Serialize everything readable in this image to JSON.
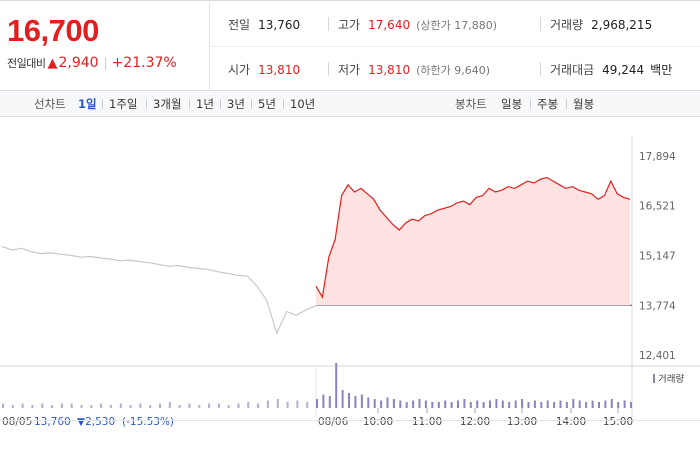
{
  "quote": {
    "price": "16,700",
    "change_label": "전일대비",
    "change_arrow": "▲",
    "change_value": "2,940",
    "change_pct": "+21.37%",
    "prev_close_label": "전일",
    "prev_close": "13,760",
    "high_label": "고가",
    "high": "17,640",
    "upper_limit": "(상한가 17,880)",
    "volume_label": "거래량",
    "volume": "2,968,215",
    "open_label": "시가",
    "open": "13,810",
    "low_label": "저가",
    "low": "13,810",
    "lower_limit": "(하한가 9,640)",
    "amount_label": "거래대금",
    "amount": "49,244",
    "amount_unit": "백만"
  },
  "tabs": {
    "line_label": "선차트",
    "periods": [
      "1일",
      "1주일",
      "3개월",
      "1년",
      "3년",
      "5년",
      "10년"
    ],
    "active": "1일",
    "candle_label": "봉차트",
    "candles": [
      "일봉",
      "주봉",
      "월봉"
    ]
  },
  "colors": {
    "up": "#e21e1e",
    "prev_line": "#c8c8c8",
    "area_fill": "#fde2e2",
    "volume": "#8e82bd",
    "accent": "#2b57c6"
  },
  "chart_data": {
    "type": "line",
    "title": "",
    "ylim": [
      12401,
      17894
    ],
    "yticks": [
      "17,894",
      "16,521",
      "15,147",
      "13,774",
      "12,401"
    ],
    "ytick_values": [
      17894,
      16521,
      15147,
      13774,
      12401
    ],
    "baseline": 13774,
    "prev_day": {
      "date": "08/05",
      "close": "13,760",
      "change": "▼2,530",
      "pct": "(-15.53%)",
      "values": [
        15400,
        15300,
        15350,
        15250,
        15200,
        15220,
        15180,
        15150,
        15100,
        15120,
        15080,
        15050,
        15000,
        15020,
        14980,
        14950,
        14900,
        14850,
        14870,
        14820,
        14790,
        14760,
        14700,
        14650,
        14600,
        14580,
        14300,
        13900,
        13000,
        13600,
        13500,
        13650,
        13760
      ]
    },
    "today": {
      "date": "08/06",
      "values": [
        14300,
        14000,
        15100,
        15600,
        16800,
        17100,
        16900,
        17000,
        16850,
        16700,
        16400,
        16200,
        16000,
        15850,
        16050,
        16150,
        16100,
        16250,
        16300,
        16400,
        16450,
        16500,
        16600,
        16650,
        16550,
        16750,
        16800,
        17000,
        16900,
        16950,
        17050,
        17000,
        17100,
        17200,
        17150,
        17250,
        17300,
        17200,
        17100,
        17000,
        17050,
        16950,
        16900,
        16850,
        16700,
        16800,
        17200,
        16850,
        16750,
        16700
      ]
    },
    "x_ticks": [
      "10:00",
      "11:00",
      "12:00",
      "13:00",
      "14:00",
      "15:00"
    ],
    "volume_label": "거래량",
    "volume_prev": [
      3,
      2,
      3,
      2,
      3,
      2,
      3,
      3,
      2,
      2,
      3,
      2,
      3,
      2,
      3,
      2,
      3,
      4,
      2,
      3,
      2,
      3,
      3,
      2,
      3,
      4,
      3,
      5,
      6,
      4,
      5,
      4,
      5
    ],
    "volume_today": [
      6,
      9,
      8,
      30,
      12,
      10,
      8,
      9,
      7,
      6,
      5,
      7,
      6,
      5,
      4,
      5,
      6,
      5,
      4,
      4,
      5,
      4,
      5,
      6,
      4,
      5,
      4,
      5,
      6,
      5,
      4,
      5,
      6,
      4,
      5,
      4,
      5,
      4,
      5,
      4,
      6,
      5,
      4,
      5,
      4,
      5,
      6,
      4,
      5,
      4
    ]
  }
}
